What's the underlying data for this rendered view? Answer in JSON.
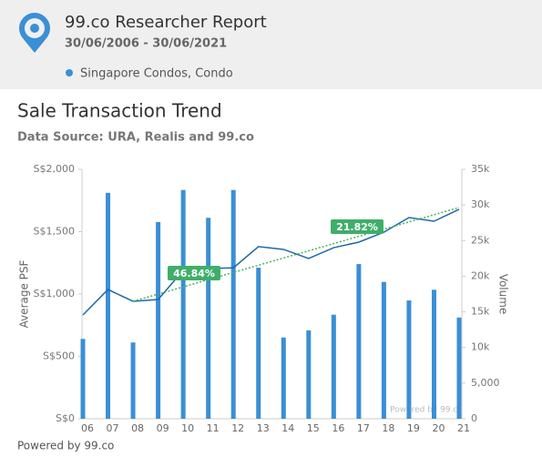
{
  "header": {
    "title": "99.co Researcher Report",
    "date_range": "30/06/2006 - 30/06/2021",
    "legend": "Singapore Condos, Condo"
  },
  "chart_data": {
    "type": "bar",
    "title": "Sale Transaction Trend",
    "subtitle": "Data Source: URA, Realis and 99.co",
    "y_label": "Average PSF",
    "y2_label": "Volume",
    "categories": [
      "06",
      "07",
      "08",
      "09",
      "10",
      "11",
      "12",
      "13",
      "14",
      "15",
      "16",
      "17",
      "18",
      "19",
      "20",
      "21"
    ],
    "series": [
      {
        "type": "bar",
        "axis": "y2",
        "color": "#3a8fd6",
        "values": [
          11200,
          31700,
          10700,
          27600,
          32100,
          28200,
          32100,
          21200,
          11400,
          12400,
          14600,
          21700,
          19200,
          16600,
          18100,
          14200
        ]
      },
      {
        "type": "line",
        "color": "#1e68a8",
        "values": [
          832,
          1036,
          942,
          956,
          1190,
          1204,
          1210,
          1380,
          1358,
          1285,
          1372,
          1416,
          1496,
          1613,
          1584,
          1679
        ]
      }
    ],
    "ylim": [
      0,
      2000
    ],
    "yticks": [
      {
        "value": 0,
        "label": "S$0"
      },
      {
        "value": 500,
        "label": "S$500"
      },
      {
        "value": 1000,
        "label": "S$1,000"
      },
      {
        "value": 1500,
        "label": "S$1,500"
      },
      {
        "value": 2000,
        "label": "S$2,000"
      }
    ],
    "y2lim": [
      0,
      35000
    ],
    "y2ticks": [
      0,
      {
        "value": 5000,
        "label": "5,000"
      },
      {
        "value": 10000,
        "label": "10k"
      },
      {
        "value": 15000,
        "label": "15k"
      },
      {
        "value": 20000,
        "label": "20k"
      },
      {
        "value": 25000,
        "label": "25k"
      },
      {
        "value": 30000,
        "label": "30k"
      },
      {
        "value": 35000,
        "label": "35k"
      }
    ],
    "trend_color": "#4cb05a",
    "annotations": [
      {
        "label": "46.84%",
        "color": "#3fae6a"
      },
      {
        "label": "21.82%",
        "color": "#3fae6a"
      }
    ],
    "watermark": "Powered by 99.co",
    "footer": "Powered by 99.co",
    "grid": false
  }
}
